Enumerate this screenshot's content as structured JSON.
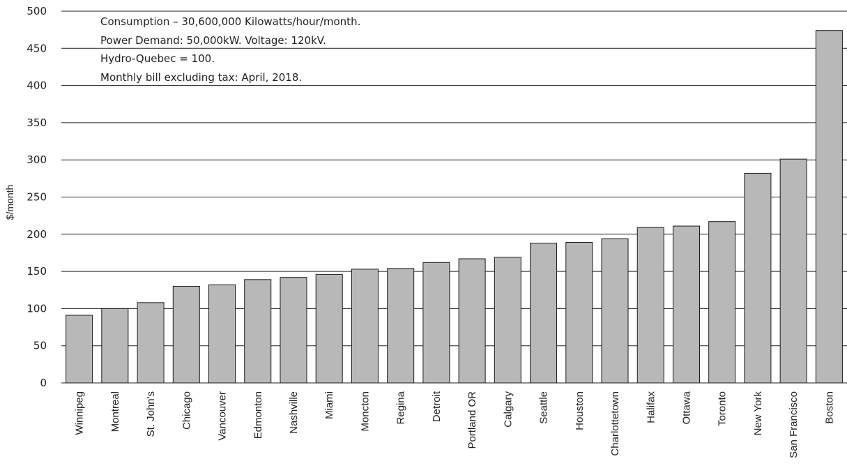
{
  "chart_data": {
    "type": "bar",
    "ylabel": "$/month",
    "xlabel": "",
    "ylim": [
      0,
      500
    ],
    "y_ticks": [
      0,
      50,
      100,
      150,
      200,
      250,
      300,
      350,
      400,
      450,
      500
    ],
    "y_tick_labels": [
      "0",
      "50",
      "100",
      "150",
      "200",
      "250",
      "300",
      "350",
      "400",
      "450",
      "500"
    ],
    "grid": "horizontal",
    "notes": [
      "Consumption – 30,600,000 Kilowatts/hour/month.",
      "Power Demand: 50,000kW. Voltage: 120kV.",
      "Hydro-Quebec = 100.",
      "Monthly bill excluding tax: April, 2018."
    ],
    "categories": [
      "Winnipeg",
      "Montreal",
      "St. John's",
      "Chicago",
      "Vancouver",
      "Edmonton",
      "Nashville",
      "Miami",
      "Moncton",
      "Regina",
      "Detroit",
      "Portland OR",
      "Calgary",
      "Seattle",
      "Houston",
      "Charlottetown",
      "Halifax",
      "Ottawa",
      "Toronto",
      "New York",
      "San Francisco",
      "Boston"
    ],
    "values": [
      91,
      100,
      108,
      130,
      132,
      139,
      142,
      146,
      153,
      154,
      162,
      167,
      169,
      188,
      189,
      194,
      209,
      211,
      217,
      282,
      301,
      474
    ],
    "colors": {
      "bar_fill": "#b8b8b8",
      "bar_stroke": "#1a1a1a",
      "grid": "#222222"
    }
  }
}
